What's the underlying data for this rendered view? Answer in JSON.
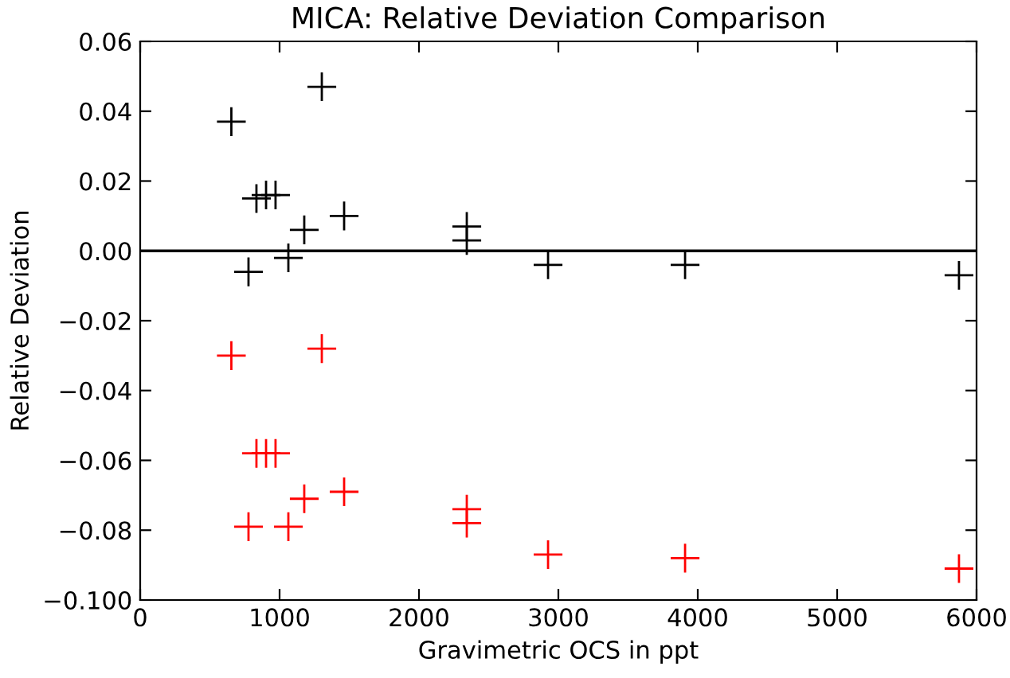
{
  "chart_data": {
    "type": "scatter",
    "title": "MICA: Relative Deviation Comparison",
    "xlabel": "Gravimetric OCS in ppt",
    "ylabel": "Relative Deviation",
    "xlim": [
      0,
      6000
    ],
    "xticks": [
      0,
      1000,
      2000,
      3000,
      4000,
      5000,
      6000
    ],
    "ylim": [
      -0.1,
      0.06
    ],
    "yticks": [
      {
        "value": -0.1,
        "label": "−0.100"
      },
      {
        "value": -0.08,
        "label": "−0.08"
      },
      {
        "value": -0.06,
        "label": "−0.06"
      },
      {
        "value": -0.04,
        "label": "−0.04"
      },
      {
        "value": -0.02,
        "label": "−0.02"
      },
      {
        "value": 0,
        "label": "0.00"
      },
      {
        "value": 0.02,
        "label": "0.02"
      },
      {
        "value": 0.04,
        "label": "0.04"
      },
      {
        "value": 0.06,
        "label": "0.06"
      }
    ],
    "marker": "cross",
    "grid": false,
    "legend": false,
    "ref_lines": [
      {
        "axis": "y",
        "value": 0,
        "color": "#000000"
      }
    ],
    "series": [
      {
        "color": "#000000",
        "x": [
          654,
          777,
          834,
          903,
          971,
          1063,
          1177,
          1303,
          1463,
          2343,
          2343,
          2926,
          3909,
          5874
        ],
        "values": [
          0.037,
          -0.006,
          0.015,
          0.016,
          0.016,
          -0.002,
          0.006,
          0.047,
          0.01,
          0.007,
          0.003,
          -0.004,
          -0.004,
          -0.007
        ]
      },
      {
        "color": "#ff0000",
        "x": [
          654,
          777,
          834,
          903,
          971,
          1063,
          1177,
          1303,
          1463,
          2343,
          2343,
          2926,
          3909,
          5874
        ],
        "values": [
          -0.03,
          -0.079,
          -0.058,
          -0.058,
          -0.058,
          -0.079,
          -0.071,
          -0.028,
          -0.069,
          -0.074,
          -0.078,
          -0.087,
          -0.088,
          -0.091
        ]
      }
    ]
  }
}
